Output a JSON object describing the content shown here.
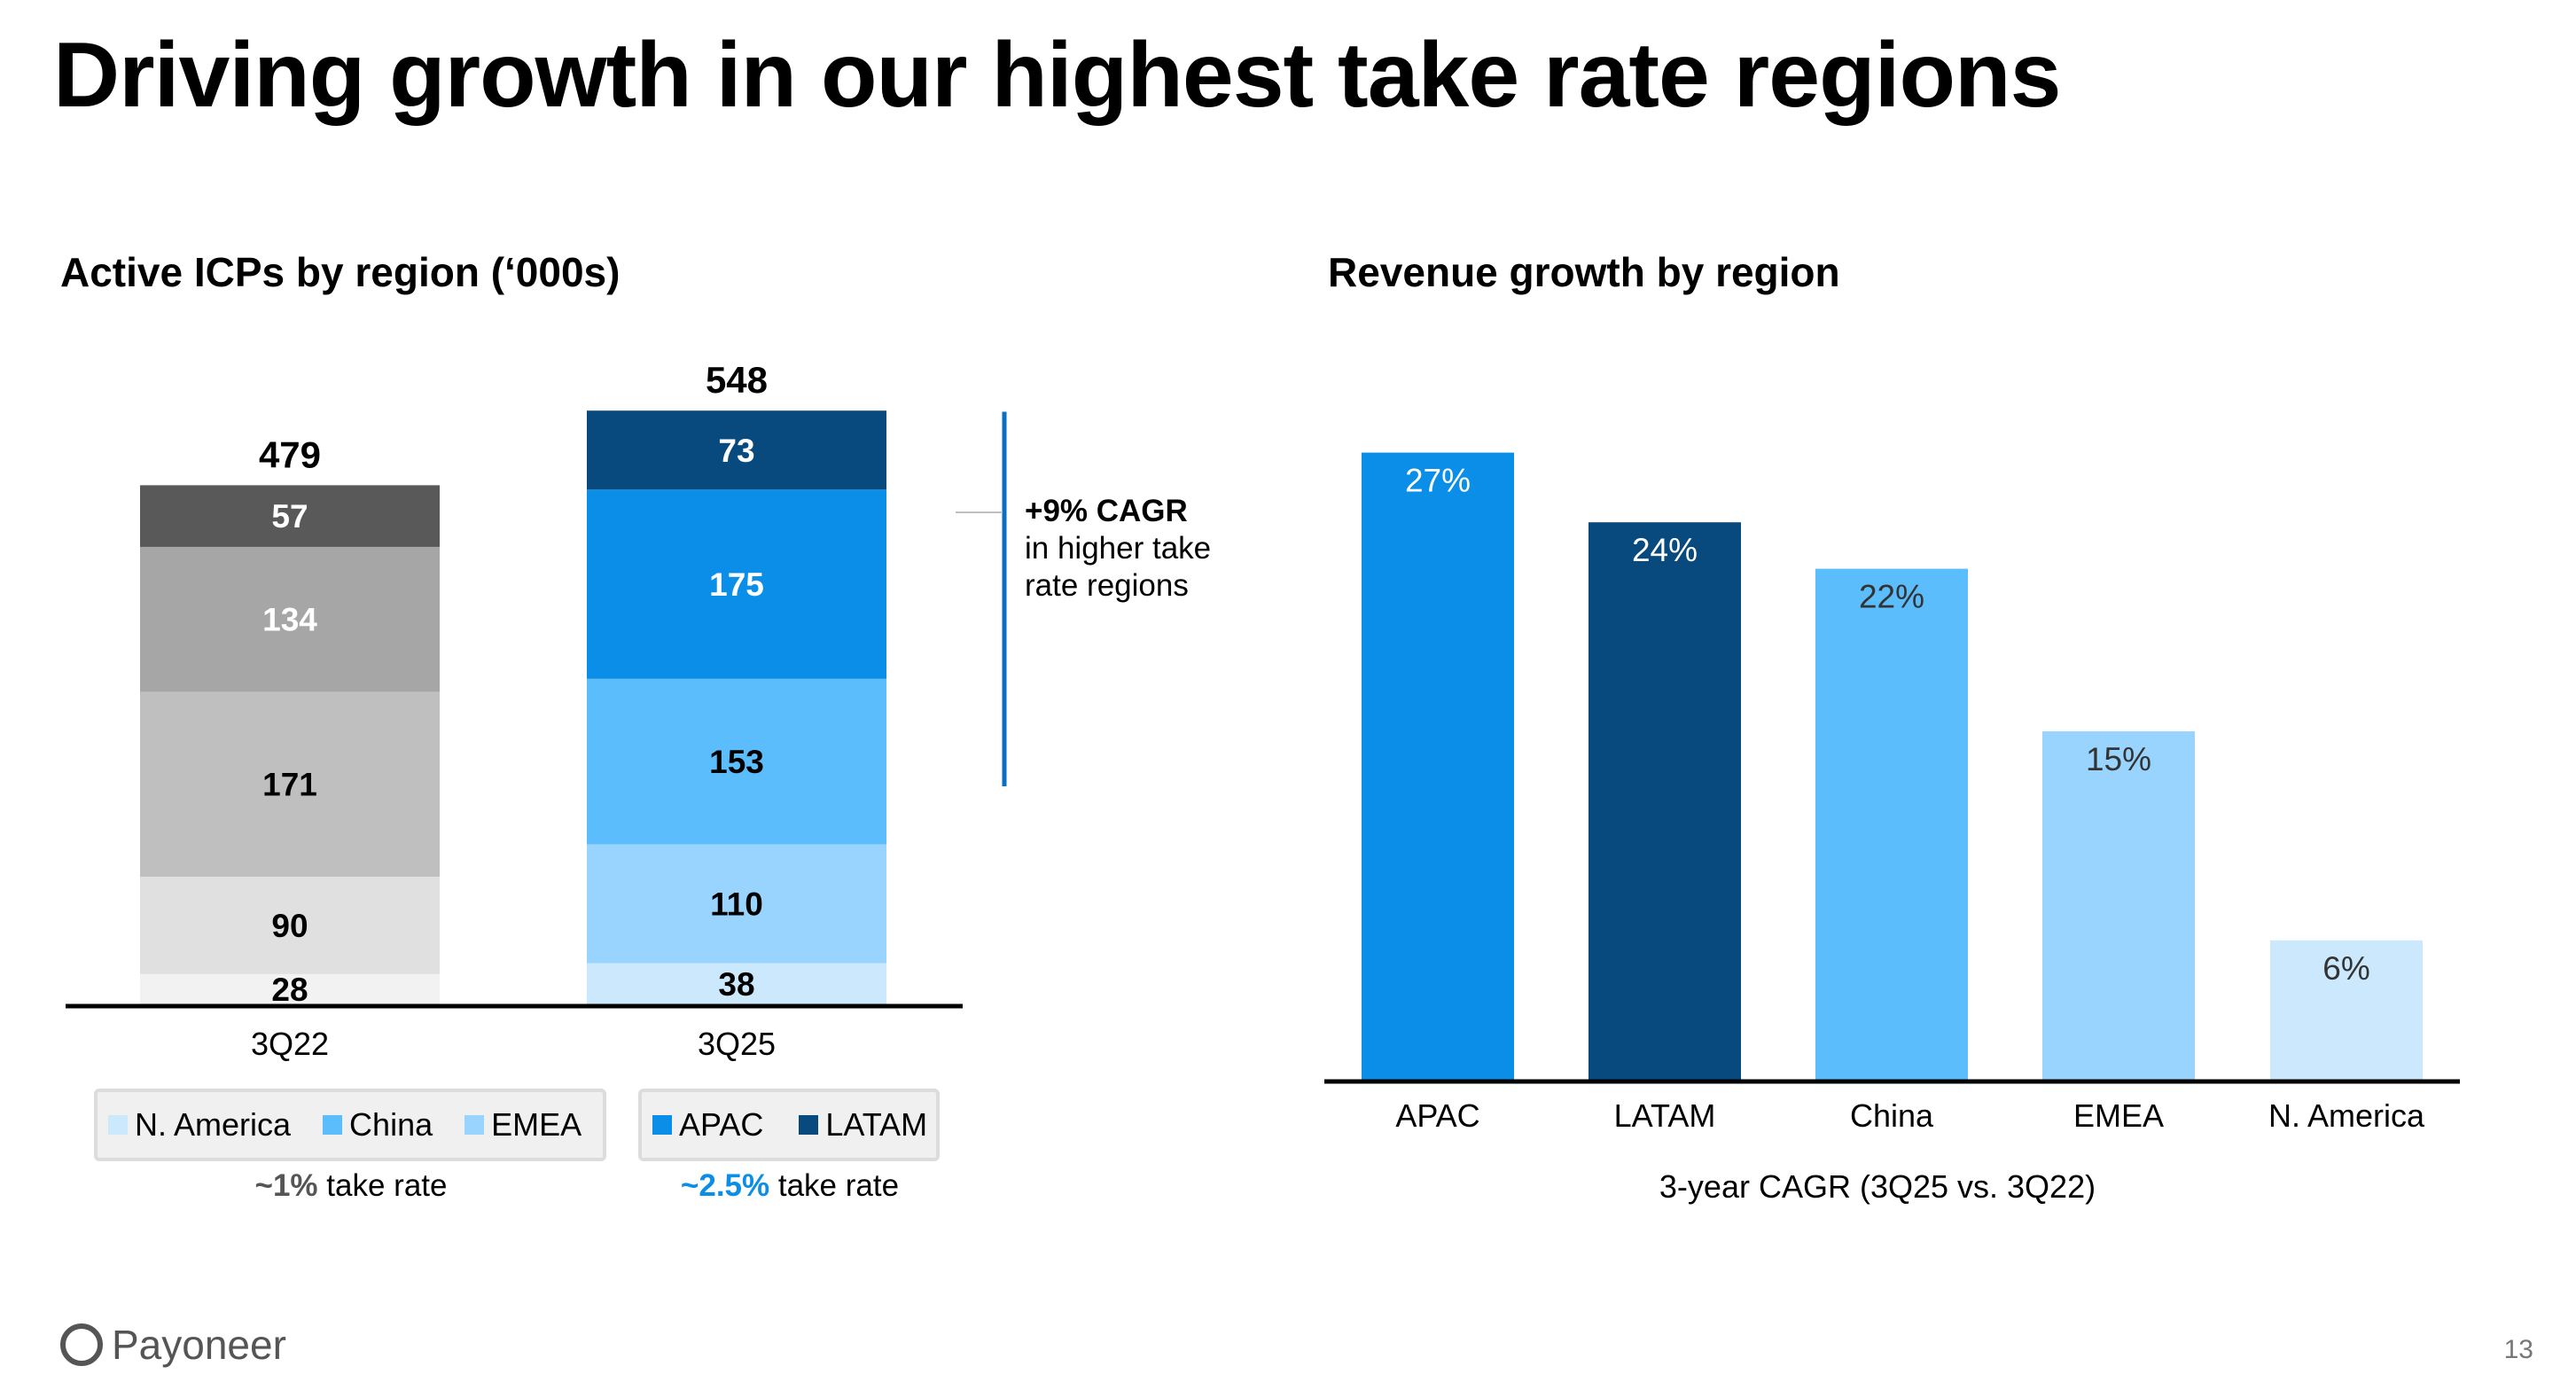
{
  "title": "Driving growth in our highest take rate regions",
  "page_number": "13",
  "logo_text": "Payoneer",
  "colors": {
    "n_america": "#cce8fd",
    "china": "#5bbdfc",
    "emea": "#98d4fd",
    "apac": "#0a8ee8",
    "latam": "#084a7e",
    "gray_na": "#f2f2f2",
    "gray_china": "#bfbfbf",
    "gray_emea": "#e0e0e0",
    "gray_apac": "#a6a6a6",
    "gray_latam": "#595959"
  },
  "legend_left": [
    "N. America",
    "China",
    "EMEA"
  ],
  "legend_right": [
    "APAC",
    "LATAM"
  ],
  "take_rate_left": {
    "value": "~1%",
    "suffix": " take rate"
  },
  "take_rate_right": {
    "value": "~2.5%",
    "suffix": " take rate"
  },
  "cagr_note": {
    "bold": "+9% CAGR",
    "line2": "in higher take",
    "line3": "rate regions"
  },
  "chart_data": [
    {
      "type": "bar",
      "stacked": true,
      "title": "Active ICPs by region (‘000s)",
      "categories": [
        "3Q22",
        "3Q25"
      ],
      "series": [
        {
          "name": "N. America",
          "values": [
            28,
            38
          ]
        },
        {
          "name": "EMEA",
          "values": [
            90,
            110
          ]
        },
        {
          "name": "China",
          "values": [
            171,
            153
          ]
        },
        {
          "name": "APAC",
          "values": [
            134,
            175
          ]
        },
        {
          "name": "LATAM",
          "values": [
            57,
            73
          ]
        }
      ],
      "totals": [
        479,
        548
      ],
      "total_labels": [
        "479",
        "548"
      ],
      "ylim": [
        0,
        548
      ]
    },
    {
      "type": "bar",
      "title": "Revenue growth by region",
      "categories": [
        "APAC",
        "LATAM",
        "China",
        "EMEA",
        "N. America"
      ],
      "values": [
        27,
        24,
        22,
        15,
        6
      ],
      "value_labels": [
        "27%",
        "24%",
        "22%",
        "15%",
        "6%"
      ],
      "xlabel": "3-year CAGR (3Q25 vs. 3Q22)",
      "ylabel": "",
      "ylim": [
        0,
        27
      ]
    }
  ]
}
